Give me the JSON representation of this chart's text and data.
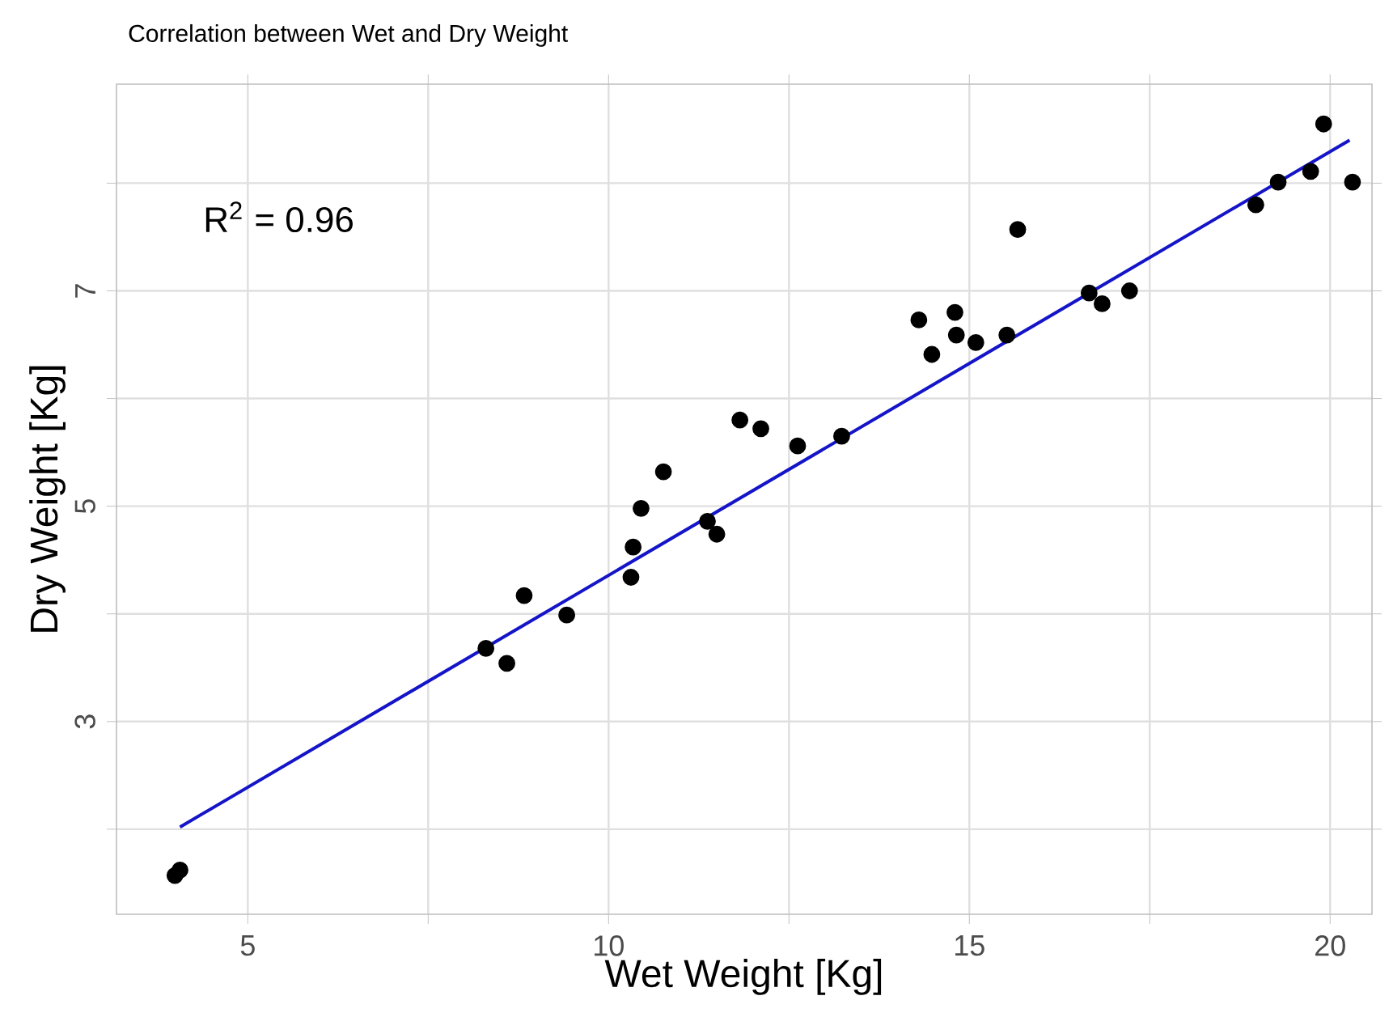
{
  "chart_data": {
    "type": "scatter",
    "title": "Correlation between Wet and Dry Weight",
    "xlabel": "Wet Weight [Kg]",
    "ylabel": "Dry Weight [Kg]",
    "annotations": [
      "R$^{2}$ = 0.96"
    ],
    "xlim": [
      3.18,
      20.58
    ],
    "ylim": [
      1.21,
      8.92
    ],
    "xticks": [
      5,
      {
        "value": 7.5,
        "label": null
      },
      10,
      {
        "value": 12.5,
        "label": null
      },
      15,
      {
        "value": 17.5,
        "label": null
      },
      20
    ],
    "yticks": [
      {
        "value": 2,
        "label": null
      },
      3,
      {
        "value": 4,
        "label": null
      },
      5,
      {
        "value": 6,
        "label": null
      },
      7,
      {
        "value": 8,
        "label": null
      }
    ],
    "grid": true,
    "series": [
      {
        "marker": "circle",
        "color": "#000000",
        "x": [
          3.99,
          4.06,
          8.3,
          8.59,
          8.83,
          9.42,
          10.31,
          10.34,
          10.45,
          10.76,
          11.37,
          11.5,
          11.82,
          12.11,
          12.62,
          13.23,
          14.3,
          14.48,
          14.8,
          14.82,
          15.09,
          15.52,
          15.67,
          16.66,
          16.84,
          17.22,
          18.97,
          19.28,
          19.73,
          19.91,
          20.31
        ],
        "values": [
          1.57,
          1.62,
          3.68,
          3.54,
          4.17,
          3.99,
          4.34,
          4.62,
          4.98,
          5.32,
          4.86,
          4.74,
          5.8,
          5.72,
          5.56,
          5.65,
          6.73,
          6.41,
          6.8,
          6.59,
          6.52,
          6.59,
          7.57,
          6.98,
          6.88,
          7.0,
          7.8,
          8.01,
          8.11,
          8.55,
          8.01
        ]
      },
      {
        "type": "line",
        "color": "#1414c8",
        "x": [
          4.06,
          20.27
        ],
        "values": [
          2.02,
          8.4
        ]
      }
    ]
  }
}
